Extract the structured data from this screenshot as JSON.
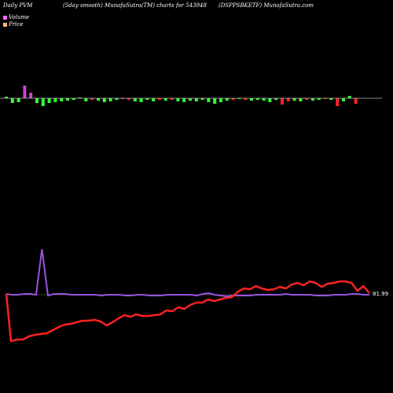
{
  "header": {
    "left": "Daily PVM",
    "mid": "(5day smooth) MunafaSutra(TM) charts for 543948",
    "right": "(DSPPSBKETF) MunafaSutra.com"
  },
  "legend": {
    "volume": "Volume",
    "price": "Price",
    "volume_color": "#ff66ff",
    "price_color": "#ffb380"
  },
  "colors": {
    "up": "#33ff33",
    "down": "#ff2222",
    "spike": "#cc44cc",
    "price_line": "#ff2222",
    "volume_line": "#9955dd",
    "zero_line": "#bbbbbb"
  },
  "chart_data": {
    "type": "line",
    "last_price_label": "81.99",
    "pvm_bars": [
      {
        "v": 2,
        "c": "up"
      },
      {
        "v": -6,
        "c": "up"
      },
      {
        "v": -5,
        "c": "up"
      },
      {
        "v": 16,
        "c": "spike"
      },
      {
        "v": 7,
        "c": "spike"
      },
      {
        "v": -6,
        "c": "up"
      },
      {
        "v": -10,
        "c": "up"
      },
      {
        "v": -6,
        "c": "up"
      },
      {
        "v": -5,
        "c": "up"
      },
      {
        "v": -4,
        "c": "up"
      },
      {
        "v": -3,
        "c": "up"
      },
      {
        "v": -2,
        "c": "up"
      },
      {
        "v": 1,
        "c": "up"
      },
      {
        "v": -4,
        "c": "up"
      },
      {
        "v": -2,
        "c": "down"
      },
      {
        "v": -3,
        "c": "up"
      },
      {
        "v": -5,
        "c": "up"
      },
      {
        "v": -4,
        "c": "up"
      },
      {
        "v": -2,
        "c": "up"
      },
      {
        "v": -1,
        "c": "down"
      },
      {
        "v": -2,
        "c": "down"
      },
      {
        "v": -4,
        "c": "up"
      },
      {
        "v": -5,
        "c": "up"
      },
      {
        "v": -2,
        "c": "up"
      },
      {
        "v": -4,
        "c": "up"
      },
      {
        "v": -2,
        "c": "down"
      },
      {
        "v": -3,
        "c": "up"
      },
      {
        "v": -2,
        "c": "down"
      },
      {
        "v": -4,
        "c": "up"
      },
      {
        "v": -5,
        "c": "up"
      },
      {
        "v": -3,
        "c": "up"
      },
      {
        "v": -4,
        "c": "up"
      },
      {
        "v": -2,
        "c": "up"
      },
      {
        "v": -5,
        "c": "up"
      },
      {
        "v": -7,
        "c": "up"
      },
      {
        "v": -5,
        "c": "up"
      },
      {
        "v": -3,
        "c": "up"
      },
      {
        "v": -2,
        "c": "down"
      },
      {
        "v": -1,
        "c": "up"
      },
      {
        "v": -2,
        "c": "down"
      },
      {
        "v": -3,
        "c": "up"
      },
      {
        "v": -2,
        "c": "up"
      },
      {
        "v": -3,
        "c": "up"
      },
      {
        "v": -5,
        "c": "up"
      },
      {
        "v": -2,
        "c": "up"
      },
      {
        "v": -8,
        "c": "down"
      },
      {
        "v": -4,
        "c": "down"
      },
      {
        "v": -3,
        "c": "up"
      },
      {
        "v": -4,
        "c": "up"
      },
      {
        "v": -2,
        "c": "down"
      },
      {
        "v": -3,
        "c": "up"
      },
      {
        "v": -2,
        "c": "up"
      },
      {
        "v": -1,
        "c": "down"
      },
      {
        "v": -2,
        "c": "up"
      },
      {
        "v": -10,
        "c": "down"
      },
      {
        "v": -4,
        "c": "up"
      },
      {
        "v": 3,
        "c": "up"
      },
      {
        "v": -7,
        "c": "down"
      }
    ],
    "price": [
      374,
      434,
      432,
      432,
      428,
      426,
      425,
      424,
      420,
      416,
      413,
      412,
      410,
      408,
      408,
      407,
      409,
      414,
      410,
      405,
      401,
      403,
      400,
      402,
      402,
      401,
      400,
      395,
      396,
      391,
      393,
      388,
      385,
      385,
      381,
      383,
      381,
      379,
      378,
      371,
      367,
      368,
      364,
      367,
      369,
      368,
      365,
      367,
      362,
      360,
      363,
      358,
      360,
      365,
      361,
      360,
      358,
      358,
      360,
      370,
      364,
      373
    ],
    "volume": [
      374,
      375,
      375,
      374,
      374,
      375,
      317,
      376,
      374,
      374,
      374,
      375,
      375,
      375,
      375,
      375,
      376,
      375,
      375,
      375,
      376,
      376,
      375,
      375,
      376,
      376,
      376,
      375,
      375,
      375,
      375,
      375,
      376,
      374,
      373,
      375,
      376,
      377,
      376,
      376,
      376,
      376,
      375,
      375,
      375,
      375,
      375,
      374,
      375,
      375,
      375,
      375,
      376,
      376,
      376,
      375,
      375,
      375,
      374,
      374,
      375,
      375
    ]
  }
}
